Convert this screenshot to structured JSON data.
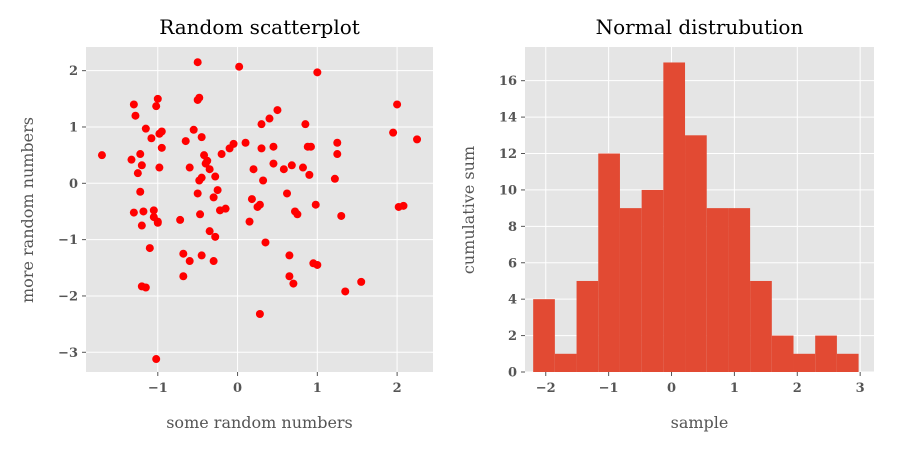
{
  "colors": {
    "plot_background": "#E5E5E5",
    "grid": "#FFFFFF",
    "scatter_points": "#FF0000",
    "histogram_bars": "#E24A33",
    "tick_text": "#555555"
  },
  "chart_data": [
    {
      "type": "scatter",
      "title": "Random scatterplot",
      "xlabel": "some random numbers",
      "ylabel": "more random numbers",
      "xlim": [
        -1.9,
        2.45
      ],
      "ylim": [
        -3.35,
        2.42
      ],
      "xticks": [
        -1,
        0,
        1,
        2
      ],
      "yticks": [
        -3,
        -2,
        -1,
        0,
        1,
        2
      ],
      "xtick_labels": [
        "−1",
        "0",
        "1",
        "2"
      ],
      "ytick_labels": [
        "−3",
        "−2",
        "−1",
        "0",
        "1",
        "2"
      ],
      "grid": true,
      "x": [
        -1.7,
        -1.3,
        -1.28,
        -1.25,
        -1.33,
        -1.3,
        -1.22,
        -1.2,
        -1.22,
        -1.15,
        -1.2,
        -1.2,
        -1.18,
        -1.15,
        -1.1,
        -1.08,
        -1.05,
        -1.05,
        -1.02,
        -0.98,
        -1.0,
        -0.98,
        -1.0,
        -0.95,
        -1.0,
        -1.02,
        -0.95,
        -0.72,
        -0.68,
        -0.65,
        -0.68,
        -0.6,
        -0.6,
        -0.55,
        -0.5,
        -0.48,
        -0.45,
        -0.5,
        -0.45,
        -0.5,
        -0.48,
        -0.47,
        -0.45,
        -0.42,
        -0.4,
        -0.38,
        -0.35,
        -0.35,
        -0.3,
        -0.3,
        -0.28,
        -0.28,
        -0.25,
        -0.22,
        -0.2,
        -0.15,
        -0.1,
        -0.05,
        0.02,
        0.1,
        0.15,
        0.18,
        0.2,
        0.25,
        0.28,
        0.28,
        0.3,
        0.3,
        0.32,
        0.35,
        0.4,
        0.45,
        0.45,
        0.5,
        0.58,
        0.62,
        0.65,
        0.65,
        0.68,
        0.7,
        0.72,
        0.75,
        0.82,
        0.85,
        0.88,
        0.9,
        0.92,
        0.95,
        0.98,
        1.0,
        1.0,
        1.22,
        1.25,
        1.25,
        1.3,
        1.35,
        1.55,
        1.95,
        2.0,
        2.02,
        2.08,
        2.25
      ],
      "y": [
        0.5,
        1.4,
        1.2,
        0.18,
        0.42,
        -0.52,
        0.52,
        0.32,
        -0.15,
        0.97,
        -0.75,
        -1.83,
        -0.5,
        -1.85,
        -1.15,
        0.8,
        -0.48,
        -0.6,
        -3.12,
        0.28,
        -0.68,
        0.88,
        -0.7,
        0.63,
        1.5,
        1.37,
        0.92,
        -0.65,
        -1.25,
        0.75,
        -1.65,
        0.28,
        -1.38,
        0.95,
        1.48,
        1.52,
        0.82,
        2.15,
        0.1,
        -0.18,
        0.05,
        -0.55,
        -1.28,
        0.5,
        0.35,
        0.4,
        0.25,
        -0.85,
        -0.25,
        -1.38,
        0.12,
        -0.95,
        -0.12,
        -0.48,
        0.52,
        -0.45,
        0.62,
        0.7,
        2.07,
        0.72,
        -0.68,
        -0.28,
        0.25,
        -0.42,
        -0.38,
        -2.32,
        1.05,
        0.62,
        0.05,
        -1.05,
        1.15,
        0.65,
        0.35,
        1.3,
        0.25,
        -0.18,
        -1.28,
        -1.65,
        0.32,
        -1.78,
        -0.5,
        -0.55,
        0.28,
        1.05,
        0.65,
        0.15,
        0.65,
        -1.42,
        -0.38,
        1.97,
        -1.45,
        0.08,
        0.72,
        0.52,
        -0.58,
        -1.92,
        -1.75,
        0.9,
        1.4,
        -0.42,
        -0.4,
        0.78
      ]
    },
    {
      "type": "bar",
      "title": "Normal distrubution",
      "xlabel": "sample",
      "ylabel": "cumulative sum",
      "xlim": [
        -2.33,
        3.22
      ],
      "ylim": [
        0,
        17.85
      ],
      "xticks": [
        -2,
        -1,
        0,
        1,
        2,
        3
      ],
      "yticks": [
        0,
        2,
        4,
        6,
        8,
        10,
        12,
        14,
        16
      ],
      "xtick_labels": [
        "−2",
        "−1",
        "0",
        "1",
        "2",
        "3"
      ],
      "ytick_labels": [
        "0",
        "2",
        "4",
        "6",
        "8",
        "10",
        "12",
        "14",
        "16"
      ],
      "grid": true,
      "bin_edges": [
        -2.2,
        -1.855,
        -1.51,
        -1.165,
        -0.82,
        -0.475,
        -0.13,
        0.215,
        0.56,
        0.905,
        1.25,
        1.595,
        1.94,
        2.285,
        2.63,
        2.975
      ],
      "values": [
        4,
        1,
        5,
        12,
        9,
        10,
        17,
        13,
        9,
        9,
        5,
        2,
        1,
        2,
        1
      ]
    }
  ]
}
